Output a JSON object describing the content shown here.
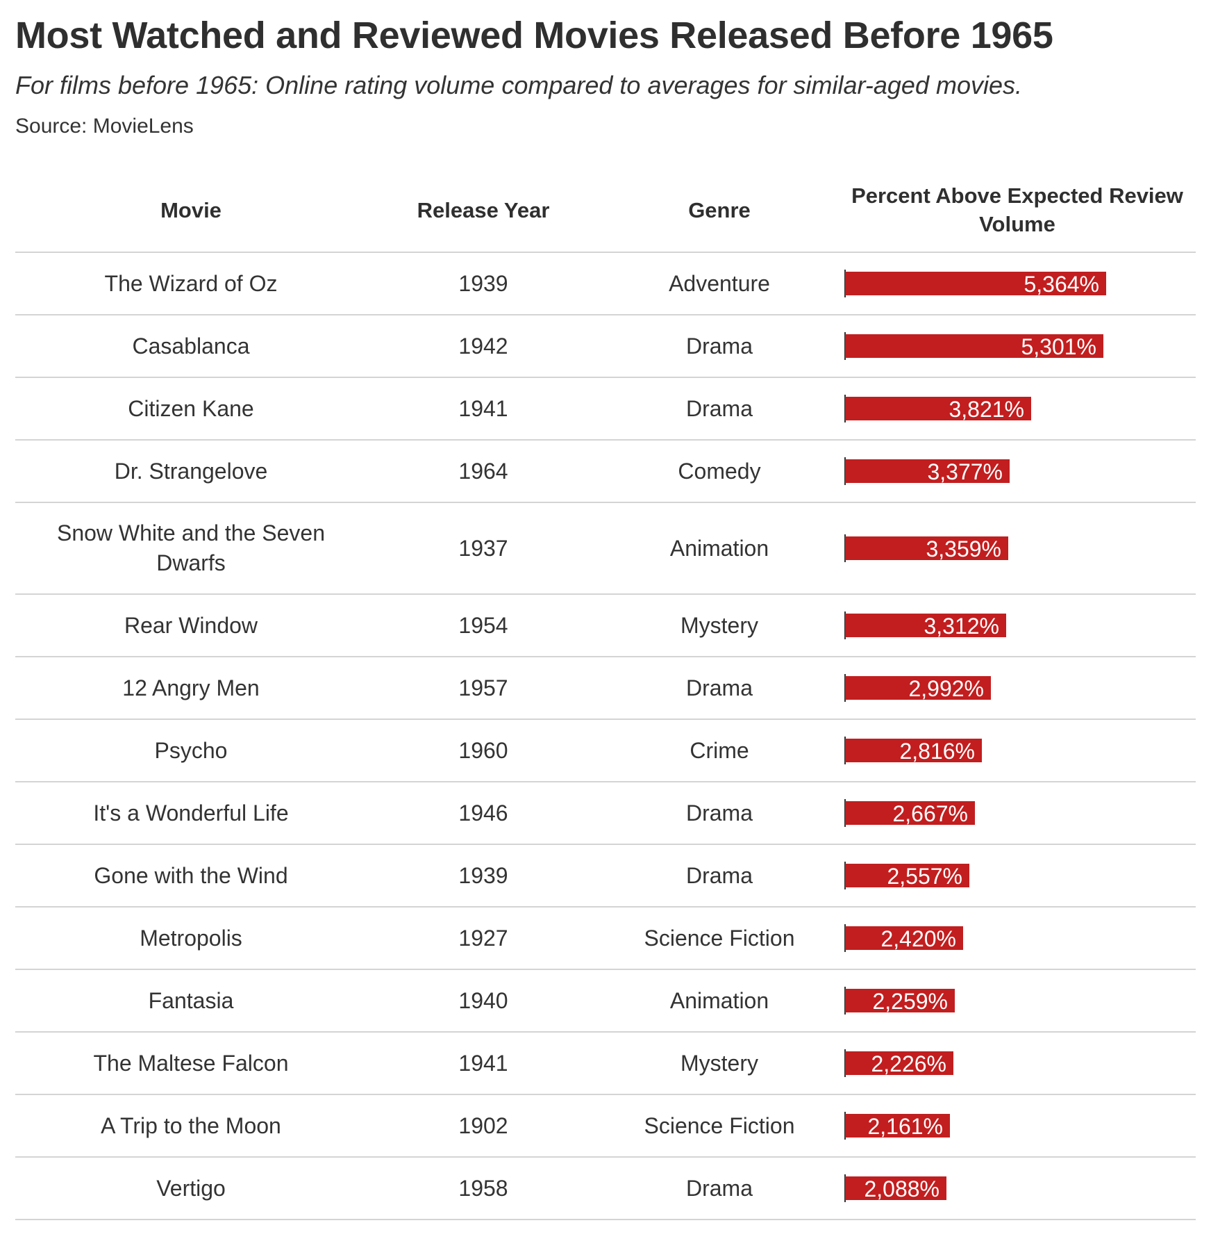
{
  "title": "Most Watched and Reviewed Movies Released Before 1965",
  "subtitle": "For films before 1965: Online rating volume compared to averages for similar-aged movies.",
  "source": "Source: MovieLens",
  "colors": {
    "bar": "#c21e1f",
    "bar_label": "#ffffff",
    "rule": "#d4d4d4",
    "text": "#333333"
  },
  "chart_data": {
    "type": "table",
    "columns": [
      "Movie",
      "Release Year",
      "Genre",
      "Percent Above Expected Review Volume"
    ],
    "bar_column": "Percent Above Expected Review Volume",
    "bar_max": 5364,
    "rows": [
      {
        "movie": "The Wizard of Oz",
        "year": "1939",
        "genre": "Adventure",
        "value": 5364,
        "label": "5,364%"
      },
      {
        "movie": "Casablanca",
        "year": "1942",
        "genre": "Drama",
        "value": 5301,
        "label": "5,301%"
      },
      {
        "movie": "Citizen Kane",
        "year": "1941",
        "genre": "Drama",
        "value": 3821,
        "label": "3,821%"
      },
      {
        "movie": "Dr. Strangelove",
        "year": "1964",
        "genre": "Comedy",
        "value": 3377,
        "label": "3,377%"
      },
      {
        "movie": "Snow White and the Seven Dwarfs",
        "year": "1937",
        "genre": "Animation",
        "value": 3359,
        "label": "3,359%"
      },
      {
        "movie": "Rear Window",
        "year": "1954",
        "genre": "Mystery",
        "value": 3312,
        "label": "3,312%"
      },
      {
        "movie": "12 Angry Men",
        "year": "1957",
        "genre": "Drama",
        "value": 2992,
        "label": "2,992%"
      },
      {
        "movie": "Psycho",
        "year": "1960",
        "genre": "Crime",
        "value": 2816,
        "label": "2,816%"
      },
      {
        "movie": "It's a Wonderful Life",
        "year": "1946",
        "genre": "Drama",
        "value": 2667,
        "label": "2,667%"
      },
      {
        "movie": "Gone with the Wind",
        "year": "1939",
        "genre": "Drama",
        "value": 2557,
        "label": "2,557%"
      },
      {
        "movie": "Metropolis",
        "year": "1927",
        "genre": "Science Fiction",
        "value": 2420,
        "label": "2,420%"
      },
      {
        "movie": "Fantasia",
        "year": "1940",
        "genre": "Animation",
        "value": 2259,
        "label": "2,259%"
      },
      {
        "movie": "The Maltese Falcon",
        "year": "1941",
        "genre": "Mystery",
        "value": 2226,
        "label": "2,226%"
      },
      {
        "movie": "A Trip to the Moon",
        "year": "1902",
        "genre": "Science Fiction",
        "value": 2161,
        "label": "2,161%"
      },
      {
        "movie": "Vertigo",
        "year": "1958",
        "genre": "Drama",
        "value": 2088,
        "label": "2,088%"
      }
    ]
  }
}
